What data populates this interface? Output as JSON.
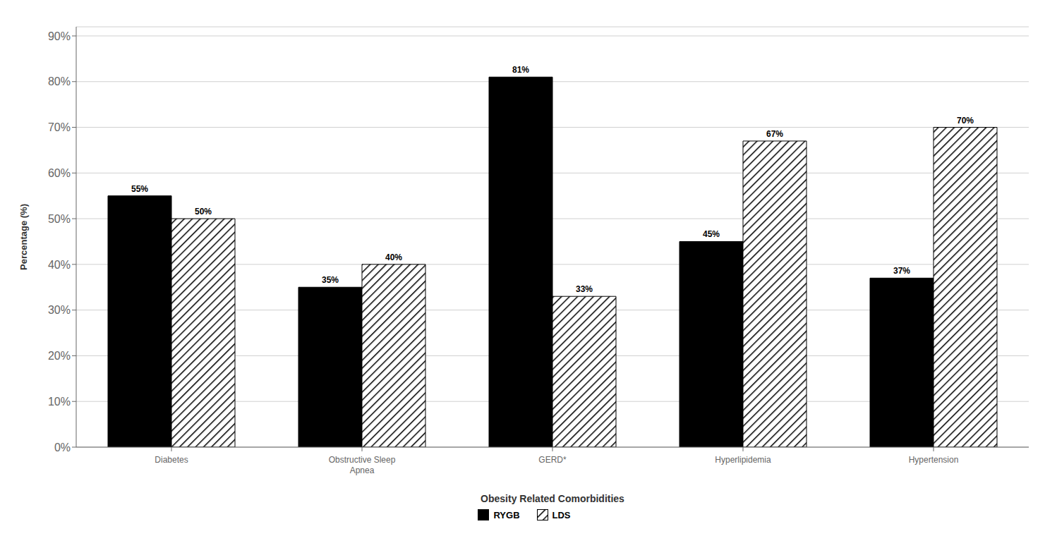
{
  "chart_data": {
    "type": "bar",
    "xlabel": "Obesity Related Comorbidities",
    "ylabel": "Percentage (%)",
    "categories": [
      "Diabetes",
      "Obstructive Sleep\nApnea",
      "GERD*",
      "Hyperlipidemia",
      "Hypertension"
    ],
    "series": [
      {
        "name": "RYGB",
        "color": "#000000",
        "values": [
          55,
          35,
          81,
          45,
          37
        ],
        "value_labels": [
          "55%",
          "35%",
          "81%",
          "45%",
          "37%"
        ]
      },
      {
        "name": "LDS",
        "color": "#ffffff",
        "values": [
          50,
          40,
          33,
          67,
          70
        ],
        "value_labels": [
          "50%",
          "40%",
          "33%",
          "67%",
          "70%"
        ]
      }
    ],
    "ylim": [
      0,
      92
    ],
    "yticks": [
      {
        "value": 0,
        "label": "0%"
      },
      {
        "value": 10,
        "label": "10%"
      },
      {
        "value": 20,
        "label": "20%"
      },
      {
        "value": 30,
        "label": "30%"
      },
      {
        "value": 40,
        "label": "40%"
      },
      {
        "value": 50,
        "label": "50%"
      },
      {
        "value": 60,
        "label": "60%"
      },
      {
        "value": 70,
        "label": "70%"
      },
      {
        "value": 80,
        "label": "80%"
      },
      {
        "value": 90,
        "label": "90%"
      }
    ],
    "grid": true,
    "legend": "bottom",
    "data_labels": true
  }
}
